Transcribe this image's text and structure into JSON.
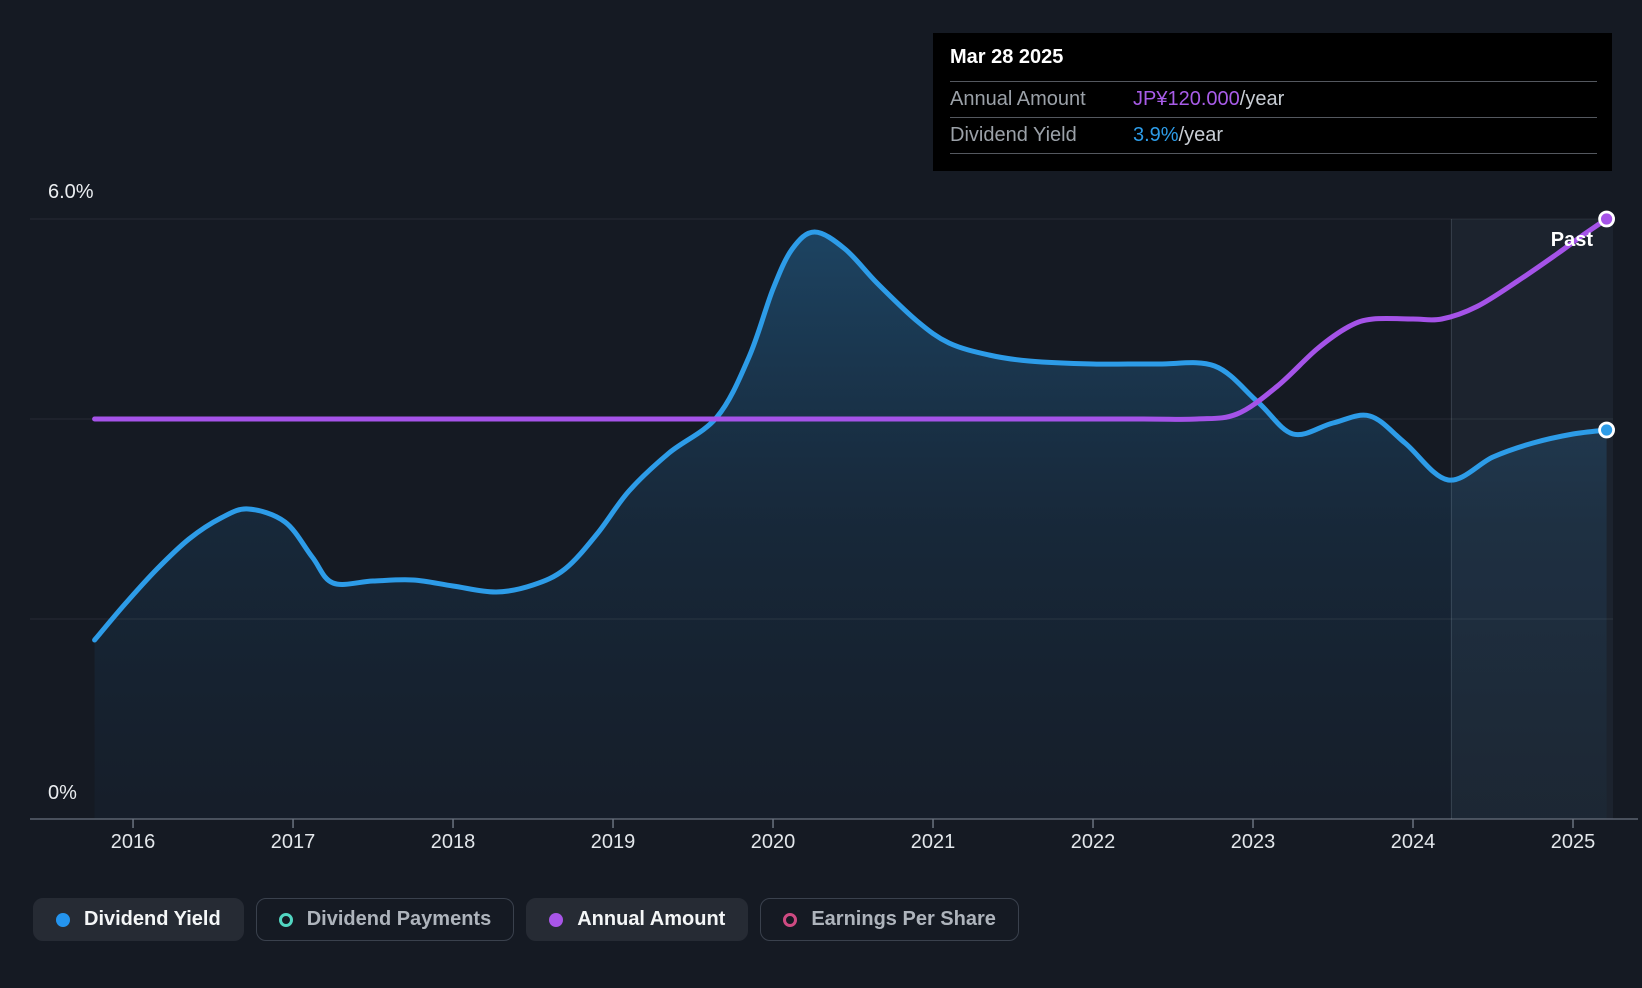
{
  "tooltip": {
    "date": "Mar 28 2025",
    "rows": [
      {
        "label": "Annual Amount",
        "value": "JP¥120.000",
        "suffix": "/year",
        "color": "#A85CE8"
      },
      {
        "label": "Dividend Yield",
        "value": "3.9%",
        "suffix": "/year",
        "color": "#2D9CE8"
      }
    ]
  },
  "chart_data": {
    "type": "line",
    "x_axis": {
      "lim": [
        2015.356,
        2025.25
      ],
      "ticks": [
        {
          "value": 2016,
          "label": "2016"
        },
        {
          "value": 2017,
          "label": "2017"
        },
        {
          "value": 2018,
          "label": "2018"
        },
        {
          "value": 2019,
          "label": "2019"
        },
        {
          "value": 2020,
          "label": "2020"
        },
        {
          "value": 2021,
          "label": "2021"
        },
        {
          "value": 2022,
          "label": "2022"
        },
        {
          "value": 2023,
          "label": "2023"
        },
        {
          "value": 2024,
          "label": "2024"
        },
        {
          "value": 2025,
          "label": "2025"
        }
      ]
    },
    "y_axis": {
      "percent_scale_max": 6.2,
      "amount_scale_max": 124,
      "gridlines_percent": [
        2,
        4,
        6
      ],
      "baseline_percent": 0,
      "labels": [
        {
          "value": 6.0,
          "text": "6.0%"
        },
        {
          "value": 0,
          "text": "0%"
        }
      ]
    },
    "past_region": {
      "start_year": 2024.24,
      "label": "Past"
    },
    "series": [
      {
        "name": "Dividend Yield",
        "unit": "%",
        "color": "#2D9CE8",
        "scale_max": 6.2,
        "area": true,
        "points": [
          [
            2015.76,
            1.79
          ],
          [
            2015.95,
            2.15
          ],
          [
            2016.15,
            2.5
          ],
          [
            2016.35,
            2.8
          ],
          [
            2016.55,
            3.01
          ],
          [
            2016.72,
            3.1
          ],
          [
            2016.95,
            2.97
          ],
          [
            2017.12,
            2.62
          ],
          [
            2017.25,
            2.36
          ],
          [
            2017.5,
            2.38
          ],
          [
            2017.75,
            2.39
          ],
          [
            2018.0,
            2.33
          ],
          [
            2018.27,
            2.27
          ],
          [
            2018.5,
            2.34
          ],
          [
            2018.7,
            2.5
          ],
          [
            2018.9,
            2.85
          ],
          [
            2019.1,
            3.28
          ],
          [
            2019.35,
            3.66
          ],
          [
            2019.65,
            4.02
          ],
          [
            2019.85,
            4.62
          ],
          [
            2020.0,
            5.3
          ],
          [
            2020.12,
            5.7
          ],
          [
            2020.26,
            5.87
          ],
          [
            2020.45,
            5.7
          ],
          [
            2020.65,
            5.36
          ],
          [
            2020.9,
            4.98
          ],
          [
            2021.1,
            4.76
          ],
          [
            2021.35,
            4.64
          ],
          [
            2021.6,
            4.58
          ],
          [
            2022.0,
            4.55
          ],
          [
            2022.4,
            4.55
          ],
          [
            2022.76,
            4.53
          ],
          [
            2023.03,
            4.17
          ],
          [
            2023.25,
            3.85
          ],
          [
            2023.5,
            3.96
          ],
          [
            2023.73,
            4.03
          ],
          [
            2023.95,
            3.76
          ],
          [
            2024.22,
            3.39
          ],
          [
            2024.5,
            3.62
          ],
          [
            2024.75,
            3.76
          ],
          [
            2025.0,
            3.85
          ],
          [
            2025.21,
            3.89
          ]
        ]
      },
      {
        "name": "Annual Amount",
        "unit": "JP¥/year",
        "color": "#A553E8",
        "scale_max": 124,
        "area": false,
        "points": [
          [
            2015.76,
            80
          ],
          [
            2016.5,
            80
          ],
          [
            2017.5,
            80
          ],
          [
            2018.5,
            80
          ],
          [
            2019.5,
            80
          ],
          [
            2020.5,
            80
          ],
          [
            2021.5,
            80
          ],
          [
            2022.3,
            80
          ],
          [
            2022.65,
            80
          ],
          [
            2022.9,
            81
          ],
          [
            2023.15,
            86.5
          ],
          [
            2023.4,
            94
          ],
          [
            2023.6,
            98.5
          ],
          [
            2023.75,
            100
          ],
          [
            2024.0,
            100
          ],
          [
            2024.18,
            100
          ],
          [
            2024.4,
            102.5
          ],
          [
            2024.65,
            107.5
          ],
          [
            2024.9,
            113
          ],
          [
            2025.05,
            116.5
          ],
          [
            2025.21,
            120
          ]
        ]
      }
    ]
  },
  "legend": [
    {
      "label": "Dividend Yield",
      "marker": "filled",
      "color": "#2494EE",
      "active": true
    },
    {
      "label": "Dividend Payments",
      "marker": "ring",
      "color": "#52D6C2",
      "active": false
    },
    {
      "label": "Annual Amount",
      "marker": "filled",
      "color": "#A855E8",
      "active": true
    },
    {
      "label": "Earnings Per Share",
      "marker": "ring",
      "color": "#CE4A82",
      "active": false
    }
  ]
}
